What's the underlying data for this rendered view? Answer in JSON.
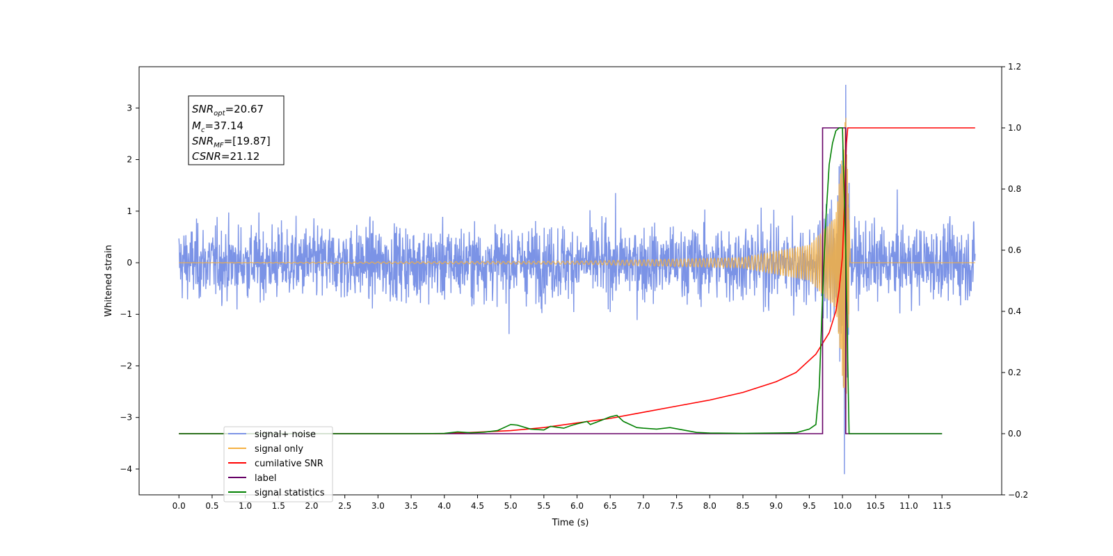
{
  "chart_data": {
    "type": "line",
    "xlabel": "Time (s)",
    "ylabel": "Whitened strain",
    "xlim": [
      -0.6,
      12.4
    ],
    "ylim": [
      -4.5,
      3.8
    ],
    "y2lim": [
      -0.2,
      1.2
    ],
    "x_ticks": [
      0.0,
      0.5,
      1.0,
      1.5,
      2.0,
      2.5,
      3.0,
      3.5,
      4.0,
      4.5,
      5.0,
      5.5,
      6.0,
      6.5,
      7.0,
      7.5,
      8.0,
      8.5,
      9.0,
      9.5,
      10.0,
      10.5,
      11.0,
      11.5
    ],
    "x_tick_labels": [
      "0.0",
      "0.5",
      "1.0",
      "1.5",
      "2.0",
      "2.5",
      "3.0",
      "3.5",
      "4.0",
      "4.5",
      "5.0",
      "5.5",
      "6.0",
      "6.5",
      "7.0",
      "7.5",
      "8.0",
      "8.5",
      "9.0",
      "9.5",
      "10.0",
      "10.5",
      "11.0",
      "11.5"
    ],
    "y_ticks": [
      -4,
      -3,
      -2,
      -1,
      0,
      1,
      2,
      3
    ],
    "y_tick_labels": [
      "−4",
      "−3",
      "−2",
      "−1",
      "0",
      "1",
      "2",
      "3"
    ],
    "y2_ticks": [
      -0.2,
      0.0,
      0.2,
      0.4,
      0.6,
      0.8,
      1.0,
      1.2
    ],
    "y2_tick_labels": [
      "−0.2",
      "0.0",
      "0.2",
      "0.4",
      "0.6",
      "0.8",
      "1.0",
      "1.2"
    ],
    "grid": false,
    "legend_position": "lower-left",
    "annotation": {
      "snr_opt": "=20.67",
      "mc": "=37.14",
      "snr_mf": "=[19.87]",
      "csnr": "=21.12"
    },
    "series": [
      {
        "name": "signal+ noise",
        "color": "#7b93e6",
        "axis": "left",
        "kind": "noise",
        "amplitude_envelope": 1.25,
        "max": 3.45,
        "min": -4.1,
        "span": [
          0.0,
          12.0
        ]
      },
      {
        "name": "signal only",
        "color": "#f5b041",
        "axis": "left",
        "kind": "chirp",
        "amplitude_at": [
          [
            0.0,
            0.0
          ],
          [
            6.0,
            0.03
          ],
          [
            8.5,
            0.1
          ],
          [
            9.5,
            0.35
          ],
          [
            9.9,
            0.9
          ],
          [
            10.05,
            2.9
          ],
          [
            10.12,
            0.0
          ]
        ]
      },
      {
        "name": "cumilative SNR",
        "color": "#ff0000",
        "axis": "right",
        "x": [
          0.0,
          1.0,
          2.0,
          3.0,
          4.0,
          4.5,
          5.0,
          5.5,
          6.0,
          6.5,
          7.0,
          7.5,
          8.0,
          8.5,
          9.0,
          9.3,
          9.6,
          9.8,
          9.9,
          9.95,
          10.0,
          10.03,
          10.06,
          10.08,
          11.0,
          12.0
        ],
        "values": [
          0.0,
          0.0,
          0.0,
          0.0,
          0.0,
          0.005,
          0.01,
          0.02,
          0.035,
          0.05,
          0.07,
          0.09,
          0.11,
          0.135,
          0.17,
          0.2,
          0.26,
          0.33,
          0.4,
          0.47,
          0.58,
          0.75,
          0.95,
          1.0,
          1.0,
          1.0
        ]
      },
      {
        "name": "label",
        "color": "#660066",
        "axis": "right",
        "x": [
          0.0,
          9.7,
          9.7,
          10.05,
          10.05,
          11.5
        ],
        "values": [
          0.0,
          0.0,
          1.0,
          1.0,
          0.0,
          0.0
        ]
      },
      {
        "name": "signal statistics",
        "color": "#008000",
        "axis": "right",
        "x": [
          0.0,
          3.5,
          4.0,
          4.2,
          4.4,
          4.6,
          4.8,
          5.0,
          5.1,
          5.3,
          5.5,
          5.6,
          5.8,
          5.9,
          6.0,
          6.15,
          6.2,
          6.3,
          6.5,
          6.6,
          6.7,
          6.9,
          7.0,
          7.2,
          7.4,
          7.6,
          7.8,
          8.0,
          8.5,
          9.0,
          9.3,
          9.5,
          9.6,
          9.65,
          9.7,
          9.75,
          9.8,
          9.85,
          9.9,
          9.95,
          10.0,
          10.05,
          10.1,
          10.15,
          10.3,
          11.0,
          11.5
        ],
        "values": [
          0.0,
          0.0,
          0.001,
          0.006,
          0.003,
          0.005,
          0.01,
          0.03,
          0.028,
          0.015,
          0.012,
          0.024,
          0.018,
          0.026,
          0.032,
          0.04,
          0.03,
          0.038,
          0.055,
          0.06,
          0.04,
          0.02,
          0.018,
          0.015,
          0.02,
          0.012,
          0.004,
          0.002,
          0.001,
          0.002,
          0.003,
          0.015,
          0.03,
          0.15,
          0.45,
          0.7,
          0.88,
          0.95,
          0.99,
          1.0,
          1.0,
          0.6,
          0.0,
          0.0,
          0.0,
          0.0,
          0.0
        ]
      }
    ]
  }
}
